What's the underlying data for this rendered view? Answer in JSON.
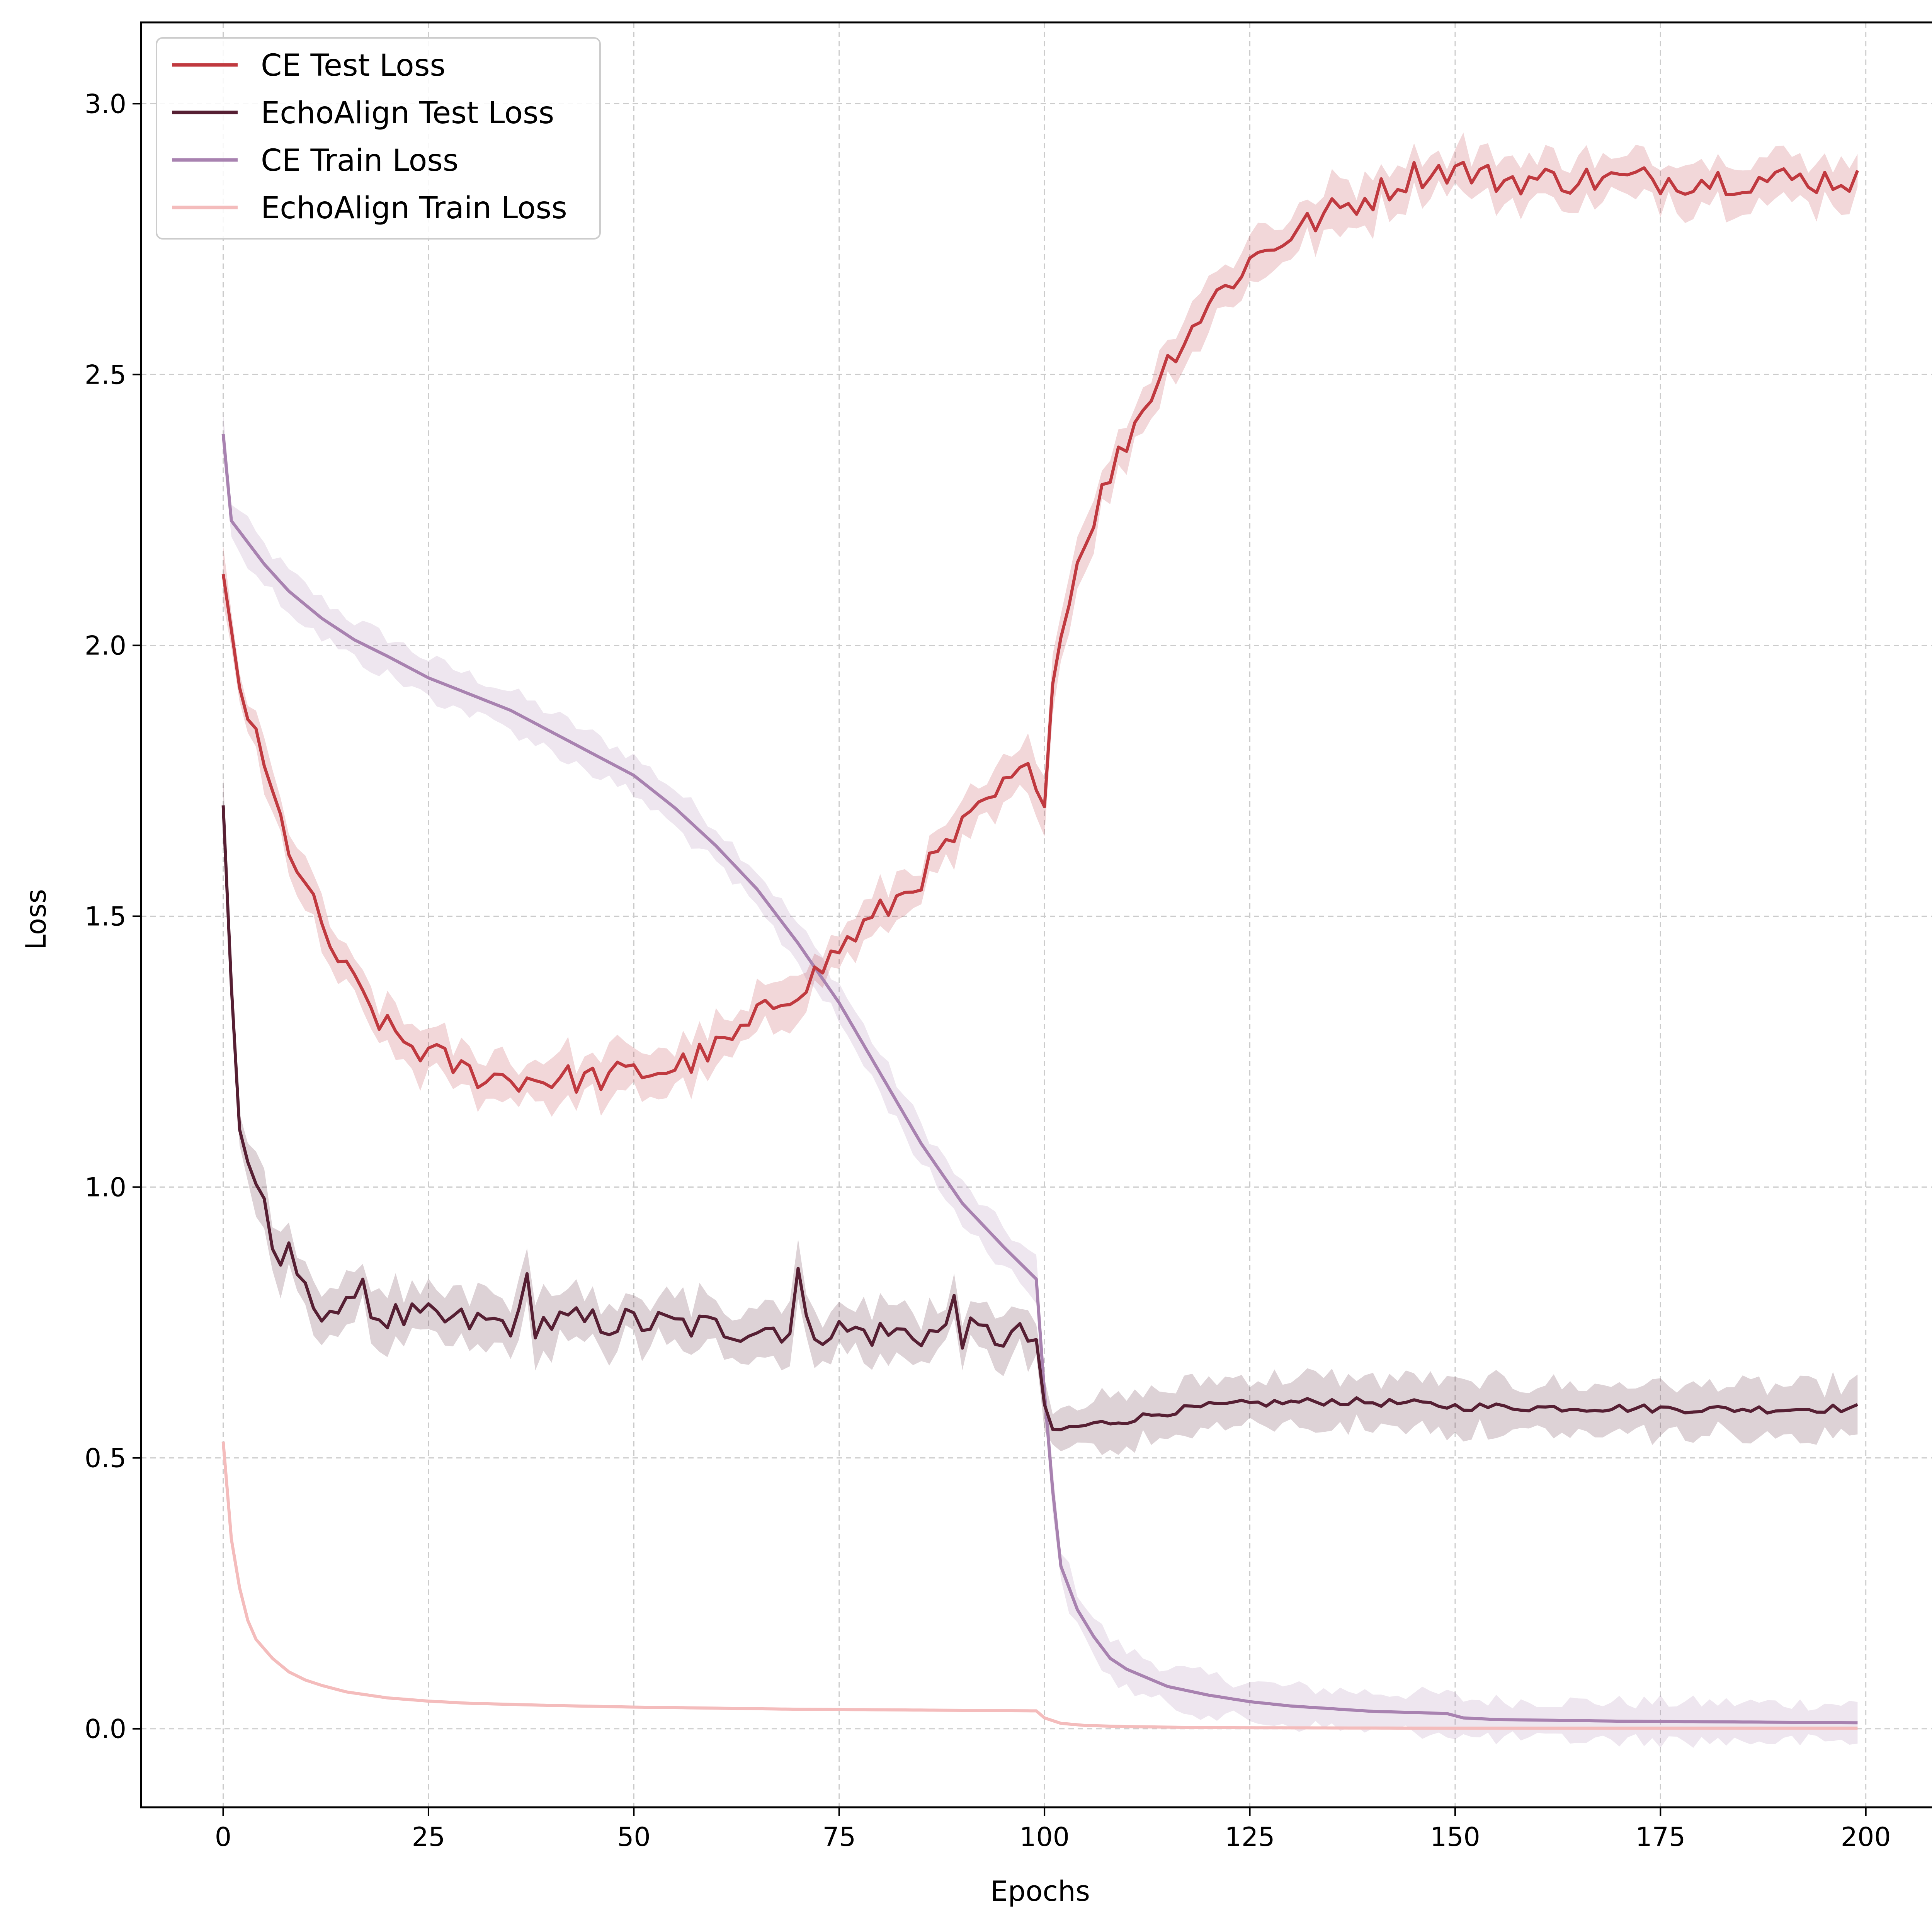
{
  "chart_data": {
    "type": "line",
    "title": "",
    "xlabel": "Epochs",
    "ylabel": "Loss",
    "xlim": [
      -10,
      209
    ],
    "ylim": [
      -0.145,
      3.15
    ],
    "xticks": [
      0,
      25,
      50,
      75,
      100,
      125,
      150,
      175,
      200
    ],
    "xtick_labels": [
      "0",
      "25",
      "50",
      "75",
      "100",
      "125",
      "150",
      "175",
      "200"
    ],
    "yticks": [
      0.0,
      0.5,
      1.0,
      1.5,
      2.0,
      2.5,
      3.0
    ],
    "ytick_labels": [
      "0.0",
      "0.5",
      "1.0",
      "1.5",
      "2.0",
      "2.5",
      "3.0"
    ],
    "grid": true,
    "legend_position": "top-left",
    "series": [
      {
        "name": "CE Test Loss",
        "color": "#c0393f",
        "band": 0.04,
        "keypoints": [
          [
            0,
            2.11
          ],
          [
            1,
            2.02
          ],
          [
            2,
            1.93
          ],
          [
            4,
            1.82
          ],
          [
            6,
            1.72
          ],
          [
            8,
            1.63
          ],
          [
            10,
            1.55
          ],
          [
            12,
            1.48
          ],
          [
            14,
            1.42
          ],
          [
            16,
            1.37
          ],
          [
            18,
            1.33
          ],
          [
            20,
            1.29
          ],
          [
            23,
            1.26
          ],
          [
            26,
            1.24
          ],
          [
            30,
            1.21
          ],
          [
            35,
            1.2
          ],
          [
            40,
            1.2
          ],
          [
            45,
            1.2
          ],
          [
            50,
            1.21
          ],
          [
            55,
            1.22
          ],
          [
            58,
            1.24
          ],
          [
            62,
            1.27
          ],
          [
            65,
            1.31
          ],
          [
            68,
            1.35
          ],
          [
            72,
            1.39
          ],
          [
            75,
            1.44
          ],
          [
            78,
            1.48
          ],
          [
            82,
            1.53
          ],
          [
            86,
            1.59
          ],
          [
            90,
            1.66
          ],
          [
            94,
            1.72
          ],
          [
            97,
            1.76
          ],
          [
            99,
            1.76
          ],
          [
            100,
            1.73
          ],
          [
            101,
            1.93
          ],
          [
            103,
            2.1
          ],
          [
            105,
            2.2
          ],
          [
            107,
            2.28
          ],
          [
            110,
            2.38
          ],
          [
            113,
            2.47
          ],
          [
            116,
            2.55
          ],
          [
            120,
            2.63
          ],
          [
            125,
            2.71
          ],
          [
            130,
            2.76
          ],
          [
            135,
            2.8
          ],
          [
            140,
            2.83
          ],
          [
            145,
            2.87
          ],
          [
            150,
            2.88
          ],
          [
            155,
            2.86
          ],
          [
            160,
            2.86
          ],
          [
            170,
            2.86
          ],
          [
            180,
            2.86
          ],
          [
            190,
            2.86
          ],
          [
            199,
            2.86
          ]
        ],
        "noise": 0.028
      },
      {
        "name": "EchoAlign Test Loss",
        "color": "#561f33",
        "band": 0.045,
        "keypoints": [
          [
            0,
            1.7
          ],
          [
            1,
            1.38
          ],
          [
            2,
            1.11
          ],
          [
            3,
            1.05
          ],
          [
            4,
            1.0
          ],
          [
            5,
            0.99
          ],
          [
            6,
            0.86
          ],
          [
            7,
            0.83
          ],
          [
            8,
            0.89
          ],
          [
            10,
            0.8
          ],
          [
            12,
            0.78
          ],
          [
            15,
            0.77
          ],
          [
            20,
            0.76
          ],
          [
            30,
            0.75
          ],
          [
            40,
            0.75
          ],
          [
            50,
            0.75
          ],
          [
            60,
            0.74
          ],
          [
            70,
            0.74
          ],
          [
            80,
            0.73
          ],
          [
            90,
            0.73
          ],
          [
            99,
            0.72
          ],
          [
            100,
            0.57
          ],
          [
            101,
            0.55
          ],
          [
            105,
            0.56
          ],
          [
            110,
            0.57
          ],
          [
            115,
            0.585
          ],
          [
            120,
            0.595
          ],
          [
            125,
            0.6
          ],
          [
            135,
            0.605
          ],
          [
            145,
            0.6
          ],
          [
            150,
            0.595
          ],
          [
            160,
            0.593
          ],
          [
            170,
            0.592
          ],
          [
            180,
            0.59
          ],
          [
            190,
            0.59
          ],
          [
            199,
            0.592
          ]
        ],
        "noise": 0.03,
        "spikes": [
          [
            17,
            0.83
          ],
          [
            37,
            0.84
          ],
          [
            70,
            0.85
          ],
          [
            89,
            0.8
          ]
        ]
      },
      {
        "name": "CE Train Loss",
        "color": "#a882b0",
        "band": 0.035,
        "keypoints": [
          [
            0,
            2.39
          ],
          [
            1,
            2.23
          ],
          [
            3,
            2.19
          ],
          [
            5,
            2.15
          ],
          [
            8,
            2.1
          ],
          [
            12,
            2.05
          ],
          [
            16,
            2.01
          ],
          [
            20,
            1.98
          ],
          [
            25,
            1.94
          ],
          [
            30,
            1.91
          ],
          [
            35,
            1.88
          ],
          [
            40,
            1.84
          ],
          [
            45,
            1.8
          ],
          [
            50,
            1.76
          ],
          [
            55,
            1.7
          ],
          [
            60,
            1.63
          ],
          [
            65,
            1.55
          ],
          [
            70,
            1.45
          ],
          [
            75,
            1.34
          ],
          [
            80,
            1.21
          ],
          [
            85,
            1.08
          ],
          [
            90,
            0.97
          ],
          [
            95,
            0.89
          ],
          [
            99,
            0.83
          ],
          [
            100,
            0.62
          ],
          [
            101,
            0.44
          ],
          [
            102,
            0.3
          ],
          [
            104,
            0.22
          ],
          [
            106,
            0.17
          ],
          [
            108,
            0.13
          ],
          [
            110,
            0.11
          ],
          [
            115,
            0.078
          ],
          [
            120,
            0.062
          ],
          [
            125,
            0.05
          ],
          [
            130,
            0.042
          ],
          [
            135,
            0.037
          ],
          [
            140,
            0.032
          ],
          [
            145,
            0.03
          ],
          [
            149,
            0.028
          ],
          [
            151,
            0.02
          ],
          [
            155,
            0.017
          ],
          [
            160,
            0.016
          ],
          [
            170,
            0.014
          ],
          [
            180,
            0.013
          ],
          [
            190,
            0.012
          ],
          [
            199,
            0.011
          ]
        ],
        "noise": 0
      },
      {
        "name": "EchoAlign Train Loss",
        "color": "#f4bcbc",
        "band": 0.0,
        "keypoints": [
          [
            0,
            0.53
          ],
          [
            1,
            0.35
          ],
          [
            2,
            0.26
          ],
          [
            3,
            0.2
          ],
          [
            4,
            0.165
          ],
          [
            6,
            0.13
          ],
          [
            8,
            0.105
          ],
          [
            10,
            0.09
          ],
          [
            12,
            0.08
          ],
          [
            15,
            0.068
          ],
          [
            20,
            0.057
          ],
          [
            25,
            0.051
          ],
          [
            30,
            0.047
          ],
          [
            40,
            0.043
          ],
          [
            50,
            0.04
          ],
          [
            60,
            0.038
          ],
          [
            70,
            0.036
          ],
          [
            80,
            0.035
          ],
          [
            90,
            0.034
          ],
          [
            99,
            0.033
          ],
          [
            100,
            0.02
          ],
          [
            102,
            0.01
          ],
          [
            105,
            0.006
          ],
          [
            110,
            0.004
          ],
          [
            120,
            0.002
          ],
          [
            150,
            0.001
          ],
          [
            199,
            0.001
          ]
        ],
        "noise": 0
      }
    ]
  }
}
